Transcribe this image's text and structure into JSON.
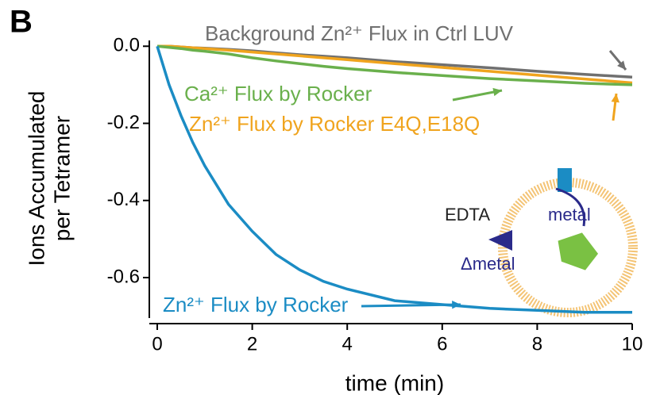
{
  "chart_data": {
    "type": "line",
    "panel_label": "B",
    "ylabel": [
      "Ions Accumulated",
      "per Tetramer"
    ],
    "xlabel": "time (min)",
    "x": [
      0,
      0.25,
      0.5,
      0.75,
      1,
      1.5,
      2,
      2.5,
      3,
      3.5,
      4,
      5,
      6,
      7,
      8,
      9,
      10
    ],
    "series": [
      {
        "name": "Zn²⁺ Flux by Rocker",
        "color": "#1b8cc4",
        "values": [
          0,
          -0.1,
          -0.18,
          -0.25,
          -0.31,
          -0.41,
          -0.48,
          -0.54,
          -0.58,
          -0.61,
          -0.63,
          -0.66,
          -0.67,
          -0.68,
          -0.685,
          -0.69,
          -0.69
        ]
      },
      {
        "name": "Ca²⁺ Flux by Rocker",
        "color": "#6ab04c",
        "values": [
          0,
          -0.003,
          -0.006,
          -0.01,
          -0.013,
          -0.02,
          -0.03,
          -0.038,
          -0.045,
          -0.052,
          -0.058,
          -0.068,
          -0.076,
          -0.084,
          -0.09,
          -0.096,
          -0.1
        ]
      },
      {
        "name": "Zn²⁺ Flux by Rocker E4Q,E18Q",
        "color": "#f0a41e",
        "values": [
          0,
          0,
          -0.002,
          -0.004,
          -0.006,
          -0.01,
          -0.015,
          -0.02,
          -0.025,
          -0.03,
          -0.035,
          -0.045,
          -0.055,
          -0.065,
          -0.075,
          -0.085,
          -0.095
        ]
      },
      {
        "name": "Background Zn²⁺ Flux in Ctrl LUV",
        "color": "#707070",
        "values": [
          0,
          0,
          -0.002,
          -0.004,
          -0.005,
          -0.008,
          -0.012,
          -0.017,
          -0.022,
          -0.026,
          -0.03,
          -0.04,
          -0.048,
          -0.056,
          -0.065,
          -0.073,
          -0.08
        ]
      }
    ],
    "xlim": [
      0,
      10
    ],
    "xticks": [
      0,
      2,
      4,
      6,
      8,
      10
    ],
    "ylim": [
      -0.705,
      0.015
    ],
    "yticks": [
      {
        "value": 0,
        "label": "0.0"
      },
      -0.2,
      -0.4,
      -0.6
    ],
    "inset_labels": [
      "EDTA",
      "metal",
      "Δmetal"
    ]
  }
}
